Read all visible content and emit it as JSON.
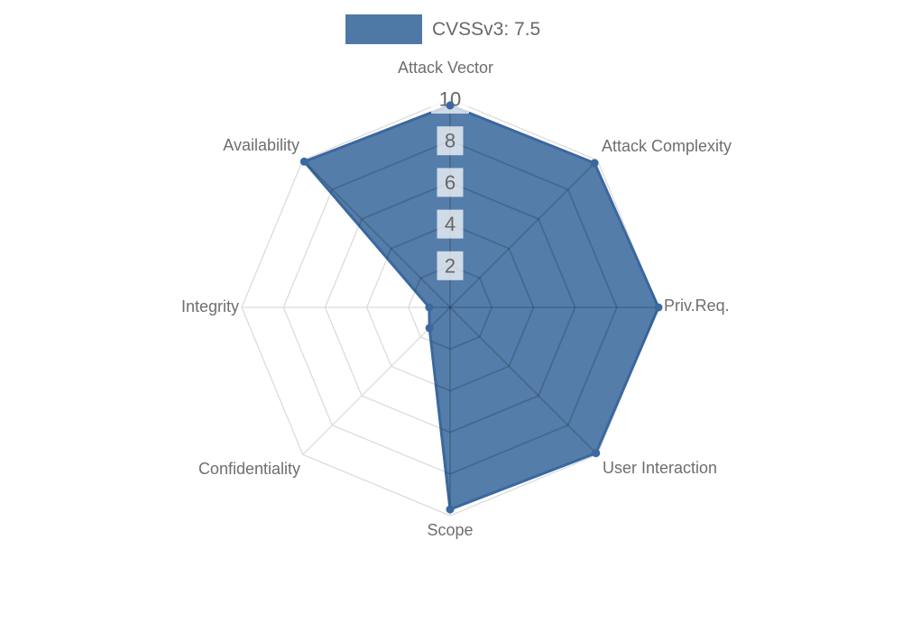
{
  "legend": {
    "label": "CVSSv3: 7.5"
  },
  "chart_data": {
    "type": "radar",
    "title": "",
    "categories": [
      "Attack Vector",
      "Attack Complexity",
      "Priv.Req.",
      "User Interaction",
      "Scope",
      "Confidentiality",
      "Integrity",
      "Availability"
    ],
    "series": [
      {
        "name": "CVSSv3: 7.5",
        "values": [
          9.7,
          9.8,
          10,
          9.9,
          9.7,
          1.4,
          1.0,
          9.9
        ]
      }
    ],
    "scale": {
      "min": 0,
      "max": 10,
      "tick_step": 2,
      "ticks": [
        2,
        4,
        6,
        8,
        10
      ]
    },
    "legend_position": "top",
    "grid": true,
    "colors": {
      "fill": "#4e79a7",
      "border": "#3a689f",
      "point": "#3a689f",
      "grid_outer": "#dcdcdc",
      "grid_inner": "rgba(0,0,0,0.16)",
      "axis_label": "#6e6e6e",
      "tick_label": "#666666",
      "tick_backdrop": "rgba(255,255,255,0.72)"
    }
  }
}
